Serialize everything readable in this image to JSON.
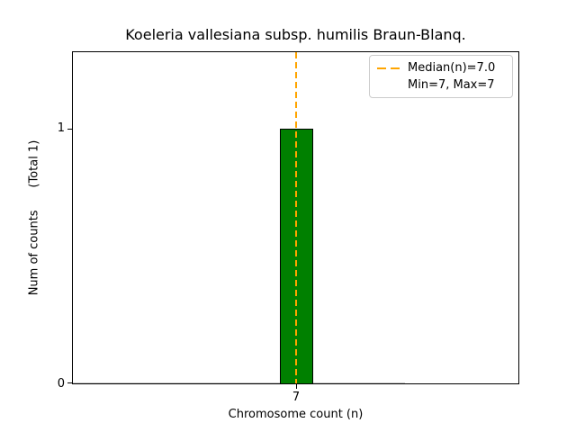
{
  "chart_data": {
    "type": "bar",
    "title": "Koeleria vallesiana subsp. humilis Braun-Blanq.",
    "xlabel": "Chromosome count (n)",
    "ylabel": "Num of counts      (Total 1)",
    "categories": [
      7
    ],
    "values": [
      1
    ],
    "total_counts": 1,
    "xticks": [
      "7"
    ],
    "yticks": [
      "0",
      "1"
    ],
    "ylim": [
      0,
      1.3
    ],
    "grid": false,
    "stats": {
      "median": 7.0,
      "min": 7,
      "max": 7
    },
    "legend": {
      "position": "upper right",
      "entries": [
        {
          "label": "Median(n)=7.0",
          "handle": "orange-dashed-line"
        },
        {
          "label": "Min=7, Max=7",
          "handle": "none"
        }
      ]
    },
    "colors": {
      "bar_fill": "#008000",
      "bar_edge": "#000000",
      "median_line": "#FFA500",
      "axes_edge": "#000000",
      "legend_border": "#cccccc"
    }
  }
}
